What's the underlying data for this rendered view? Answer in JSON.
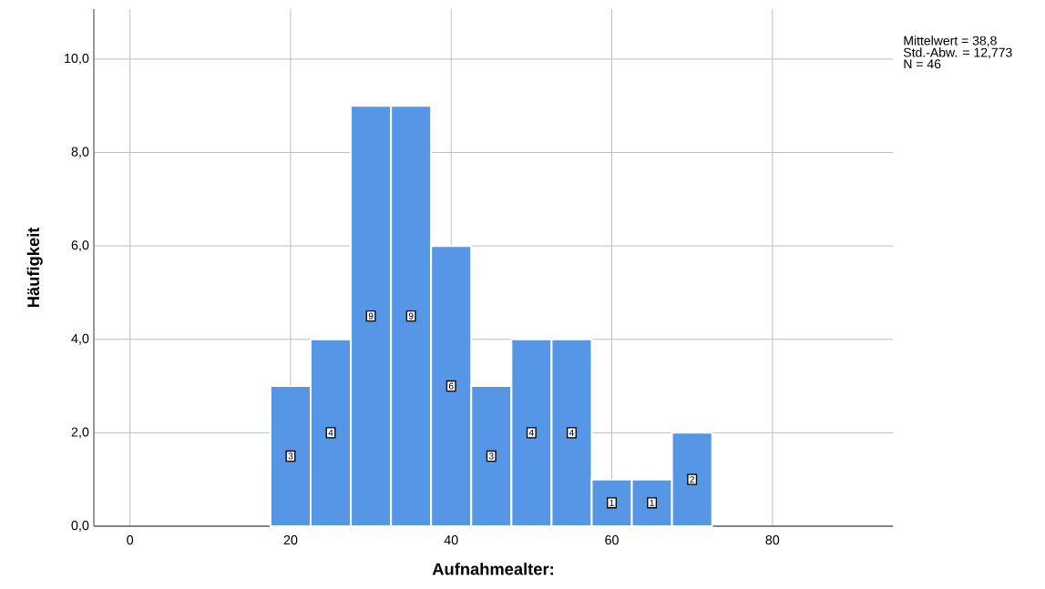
{
  "chart_data": {
    "type": "histogram",
    "xlabel": "Aufnahmealter:",
    "ylabel": "Häufigkeit",
    "bins": [
      17.5,
      22.5,
      27.5,
      32.5,
      37.5,
      42.5,
      47.5,
      52.5,
      57.5,
      62.5,
      67.5,
      72.5
    ],
    "values": [
      3,
      4,
      9,
      9,
      6,
      3,
      4,
      4,
      1,
      1,
      2
    ],
    "color": "#5596e6",
    "xlim": [
      -4.5,
      95
    ],
    "ylim": [
      0,
      11.07
    ],
    "xticks": [
      0,
      20,
      40,
      60,
      80
    ],
    "yticks": [
      {
        "value": 0,
        "label": "0,0"
      },
      {
        "value": 2,
        "label": "2,0"
      },
      {
        "value": 4,
        "label": "4,0"
      },
      {
        "value": 6,
        "label": "6,0"
      },
      {
        "value": 8,
        "label": "8,0"
      },
      {
        "value": 10,
        "label": "10,0"
      }
    ],
    "grid": true,
    "data_labels": true,
    "annotations": [
      "Mittelwert = 38,8",
      "Std.-Abw. = 12,773",
      "N = 46"
    ]
  }
}
